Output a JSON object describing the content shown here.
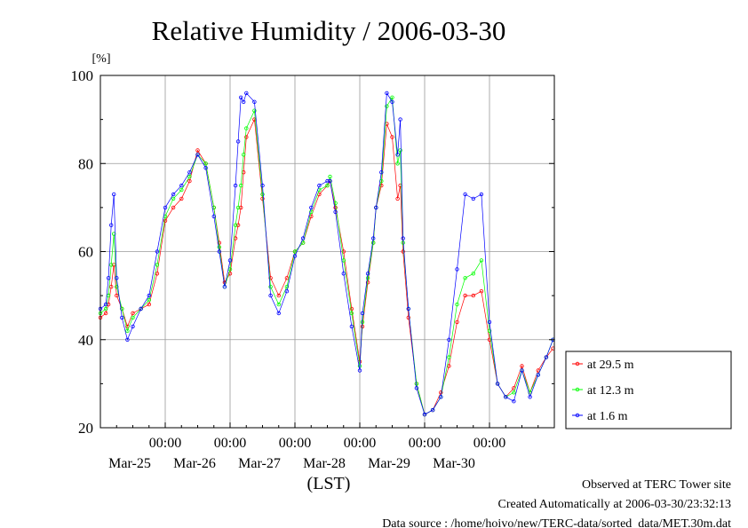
{
  "chart_data": {
    "type": "line",
    "title": "Relative Humidity / 2006-03-30",
    "ylabel": "[%]",
    "xlabel": "(LST)",
    "ylim": [
      20,
      100
    ],
    "yticks": [
      20,
      40,
      60,
      80,
      100
    ],
    "xlim": [
      "2006-03-24 00:00",
      "2006-03-30 24:00"
    ],
    "xticks": [
      {
        "time": "00:00",
        "date": "Mar-25"
      },
      {
        "time": "00:00",
        "date": "Mar-26"
      },
      {
        "time": "00:00",
        "date": "Mar-27"
      },
      {
        "time": "00:00",
        "date": "Mar-28"
      },
      {
        "time": "00:00",
        "date": "Mar-29"
      },
      {
        "time": "00:00",
        "date": "Mar-30"
      }
    ],
    "grid": true,
    "legend_position": "right-bottom",
    "series": [
      {
        "name": "at 29.5 m",
        "color": "#ff0000",
        "x": [
          "2006-03-24 00:00",
          "2006-03-24 02:00",
          "2006-03-24 03:00",
          "2006-03-24 04:00",
          "2006-03-24 05:00",
          "2006-03-24 06:00",
          "2006-03-24 08:00",
          "2006-03-24 10:00",
          "2006-03-24 12:00",
          "2006-03-24 15:00",
          "2006-03-24 18:00",
          "2006-03-24 21:00",
          "2006-03-25 00:00",
          "2006-03-25 03:00",
          "2006-03-25 06:00",
          "2006-03-25 09:00",
          "2006-03-25 12:00",
          "2006-03-25 15:00",
          "2006-03-25 18:00",
          "2006-03-25 20:00",
          "2006-03-25 22:00",
          "2006-03-26 00:00",
          "2006-03-26 02:00",
          "2006-03-26 03:00",
          "2006-03-26 04:00",
          "2006-03-26 05:00",
          "2006-03-26 06:00",
          "2006-03-26 09:00",
          "2006-03-26 12:00",
          "2006-03-26 15:00",
          "2006-03-26 18:00",
          "2006-03-26 21:00",
          "2006-03-27 00:00",
          "2006-03-27 03:00",
          "2006-03-27 06:00",
          "2006-03-27 09:00",
          "2006-03-27 12:00",
          "2006-03-27 13:00",
          "2006-03-27 15:00",
          "2006-03-27 18:00",
          "2006-03-27 21:00",
          "2006-03-28 00:00",
          "2006-03-28 01:00",
          "2006-03-28 03:00",
          "2006-03-28 05:00",
          "2006-03-28 06:00",
          "2006-03-28 08:00",
          "2006-03-28 10:00",
          "2006-03-28 12:00",
          "2006-03-28 14:00",
          "2006-03-28 15:00",
          "2006-03-28 16:00",
          "2006-03-28 18:00",
          "2006-03-28 21:00",
          "2006-03-29 00:00",
          "2006-03-29 03:00",
          "2006-03-29 06:00",
          "2006-03-29 09:00",
          "2006-03-29 12:00",
          "2006-03-29 15:00",
          "2006-03-29 18:00",
          "2006-03-29 21:00",
          "2006-03-30 00:00",
          "2006-03-30 03:00",
          "2006-03-30 06:00",
          "2006-03-30 09:00",
          "2006-03-30 12:00",
          "2006-03-30 15:00",
          "2006-03-30 18:00",
          "2006-03-30 21:00",
          "2006-03-30 23:30"
        ],
        "y": [
          45,
          46,
          48,
          52,
          57,
          50,
          47,
          43,
          46,
          47,
          48,
          55,
          67,
          70,
          72,
          76,
          83,
          80,
          70,
          62,
          53,
          55,
          63,
          66,
          70,
          78,
          86,
          90,
          72,
          54,
          50,
          54,
          60,
          62,
          68,
          73,
          75,
          76,
          70,
          60,
          47,
          35,
          43,
          53,
          62,
          70,
          75,
          89,
          86,
          72,
          75,
          60,
          45,
          30,
          23,
          24,
          28,
          34,
          44,
          50,
          50,
          51,
          40,
          30,
          27,
          29,
          34,
          28,
          33,
          36,
          38
        ]
      },
      {
        "name": "at 12.3 m",
        "color": "#00ff00",
        "x": [
          "2006-03-24 00:00",
          "2006-03-24 02:00",
          "2006-03-24 03:00",
          "2006-03-24 04:00",
          "2006-03-24 05:00",
          "2006-03-24 06:00",
          "2006-03-24 08:00",
          "2006-03-24 10:00",
          "2006-03-24 12:00",
          "2006-03-24 15:00",
          "2006-03-24 18:00",
          "2006-03-24 21:00",
          "2006-03-25 00:00",
          "2006-03-25 03:00",
          "2006-03-25 06:00",
          "2006-03-25 09:00",
          "2006-03-25 12:00",
          "2006-03-25 15:00",
          "2006-03-25 18:00",
          "2006-03-25 20:00",
          "2006-03-25 22:00",
          "2006-03-26 00:00",
          "2006-03-26 02:00",
          "2006-03-26 03:00",
          "2006-03-26 04:00",
          "2006-03-26 05:00",
          "2006-03-26 06:00",
          "2006-03-26 09:00",
          "2006-03-26 12:00",
          "2006-03-26 15:00",
          "2006-03-26 18:00",
          "2006-03-26 21:00",
          "2006-03-27 00:00",
          "2006-03-27 03:00",
          "2006-03-27 06:00",
          "2006-03-27 09:00",
          "2006-03-27 12:00",
          "2006-03-27 13:00",
          "2006-03-27 15:00",
          "2006-03-27 18:00",
          "2006-03-27 21:00",
          "2006-03-28 00:00",
          "2006-03-28 01:00",
          "2006-03-28 03:00",
          "2006-03-28 05:00",
          "2006-03-28 06:00",
          "2006-03-28 08:00",
          "2006-03-28 10:00",
          "2006-03-28 12:00",
          "2006-03-28 14:00",
          "2006-03-28 15:00",
          "2006-03-28 16:00",
          "2006-03-28 18:00",
          "2006-03-28 21:00",
          "2006-03-29 00:00",
          "2006-03-29 03:00",
          "2006-03-29 06:00",
          "2006-03-29 09:00",
          "2006-03-29 12:00",
          "2006-03-29 15:00",
          "2006-03-29 18:00",
          "2006-03-29 21:00",
          "2006-03-30 00:00",
          "2006-03-30 03:00",
          "2006-03-30 06:00",
          "2006-03-30 09:00",
          "2006-03-30 12:00",
          "2006-03-30 15:00",
          "2006-03-30 18:00",
          "2006-03-30 21:00",
          "2006-03-30 23:30"
        ],
        "y": [
          46,
          47,
          50,
          57,
          64,
          52,
          47,
          42,
          45,
          47,
          49,
          57,
          68,
          72,
          74,
          77,
          82,
          80,
          70,
          61,
          52,
          56,
          66,
          70,
          75,
          82,
          88,
          92,
          73,
          52,
          48,
          52,
          60,
          62,
          69,
          74,
          75,
          77,
          71,
          58,
          46,
          34,
          44,
          54,
          62,
          70,
          76,
          93,
          95,
          80,
          83,
          62,
          47,
          30,
          23,
          24,
          27,
          36,
          48,
          54,
          55,
          58,
          42,
          30,
          27,
          28,
          33,
          28,
          32,
          36,
          40
        ]
      },
      {
        "name": "at 1.6 m",
        "color": "#0000ff",
        "x": [
          "2006-03-24 00:00",
          "2006-03-24 02:00",
          "2006-03-24 03:00",
          "2006-03-24 04:00",
          "2006-03-24 05:00",
          "2006-03-24 06:00",
          "2006-03-24 08:00",
          "2006-03-24 10:00",
          "2006-03-24 12:00",
          "2006-03-24 15:00",
          "2006-03-24 18:00",
          "2006-03-24 21:00",
          "2006-03-25 00:00",
          "2006-03-25 03:00",
          "2006-03-25 06:00",
          "2006-03-25 09:00",
          "2006-03-25 12:00",
          "2006-03-25 15:00",
          "2006-03-25 18:00",
          "2006-03-25 20:00",
          "2006-03-25 22:00",
          "2006-03-26 00:00",
          "2006-03-26 02:00",
          "2006-03-26 03:00",
          "2006-03-26 04:00",
          "2006-03-26 05:00",
          "2006-03-26 06:00",
          "2006-03-26 09:00",
          "2006-03-26 12:00",
          "2006-03-26 15:00",
          "2006-03-26 18:00",
          "2006-03-26 21:00",
          "2006-03-27 00:00",
          "2006-03-27 03:00",
          "2006-03-27 06:00",
          "2006-03-27 09:00",
          "2006-03-27 12:00",
          "2006-03-27 13:00",
          "2006-03-27 15:00",
          "2006-03-27 18:00",
          "2006-03-27 21:00",
          "2006-03-28 00:00",
          "2006-03-28 01:00",
          "2006-03-28 03:00",
          "2006-03-28 05:00",
          "2006-03-28 06:00",
          "2006-03-28 08:00",
          "2006-03-28 10:00",
          "2006-03-28 12:00",
          "2006-03-28 14:00",
          "2006-03-28 15:00",
          "2006-03-28 16:00",
          "2006-03-28 18:00",
          "2006-03-28 21:00",
          "2006-03-29 00:00",
          "2006-03-29 03:00",
          "2006-03-29 06:00",
          "2006-03-29 09:00",
          "2006-03-29 12:00",
          "2006-03-29 15:00",
          "2006-03-29 18:00",
          "2006-03-29 21:00",
          "2006-03-30 00:00",
          "2006-03-30 03:00",
          "2006-03-30 06:00",
          "2006-03-30 09:00",
          "2006-03-30 12:00",
          "2006-03-30 15:00",
          "2006-03-30 18:00",
          "2006-03-30 21:00",
          "2006-03-30 23:30"
        ],
        "y": [
          47,
          48,
          54,
          66,
          73,
          54,
          45,
          40,
          43,
          47,
          50,
          60,
          70,
          73,
          75,
          78,
          82,
          79,
          68,
          60,
          52,
          58,
          75,
          85,
          95,
          94,
          96,
          94,
          75,
          50,
          46,
          51,
          59,
          63,
          70,
          75,
          76,
          76,
          69,
          55,
          43,
          33,
          46,
          55,
          63,
          70,
          78,
          96,
          94,
          82,
          90,
          63,
          47,
          29,
          23,
          24,
          27,
          40,
          56,
          73,
          72,
          73,
          44,
          30,
          27,
          26,
          33,
          27,
          32,
          36,
          40
        ]
      }
    ]
  },
  "footer": {
    "line1": "Observed at TERC Tower site",
    "line2": "Created Automatically at 2006-03-30/23:32:13",
    "line3": "Data source : /home/hoivo/new/TERC-data/sorted  data/MET.30m.dat"
  }
}
